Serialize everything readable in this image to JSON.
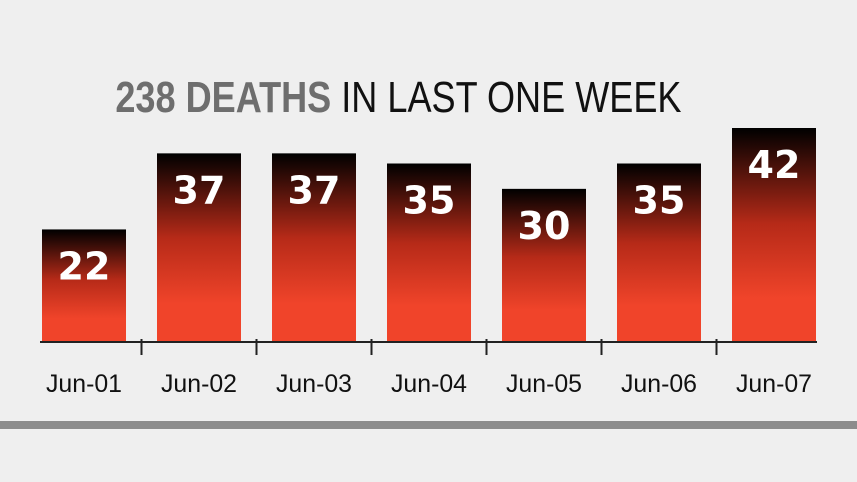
{
  "chart_data": {
    "type": "bar",
    "title_highlight": "238 DEATHS",
    "title_rest": "IN LAST ONE WEEK",
    "categories": [
      "Jun-01",
      "Jun-02",
      "Jun-03",
      "Jun-04",
      "Jun-05",
      "Jun-06",
      "Jun-07"
    ],
    "values": [
      22,
      37,
      37,
      35,
      30,
      35,
      42
    ],
    "xlabel": "",
    "ylabel": "",
    "ylim": [
      0,
      42
    ],
    "grid": false,
    "legend": "none"
  },
  "colors": {
    "bar_top": "#000000",
    "bar_mid": "#b62a18",
    "bar_bottom": "#f0442a",
    "axis": "#222222",
    "title_highlight": "#6e6e6e",
    "title_rest": "#111111",
    "rule": "#8c8c8c",
    "background": "#efefef"
  }
}
